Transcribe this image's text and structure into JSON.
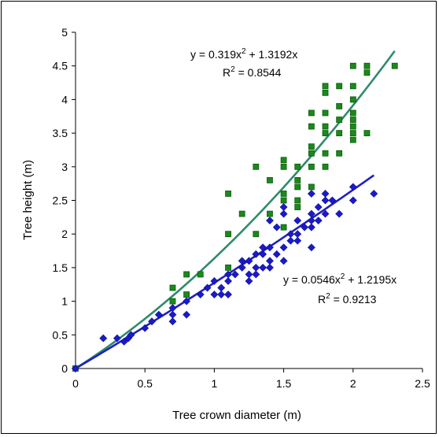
{
  "chart_data": {
    "type": "scatter",
    "title": "",
    "xlabel": "Tree crown diameter (m)",
    "ylabel": "Tree height (m)",
    "xlim": [
      0,
      2.5
    ],
    "ylim": [
      0,
      5
    ],
    "xticks": [
      "0",
      "0.5",
      "1",
      "1.5",
      "2",
      "2.5"
    ],
    "yticks": [
      "0",
      "0.5",
      "1",
      "1.5",
      "2",
      "2.5",
      "3",
      "3.5",
      "4",
      "4.5",
      "5"
    ],
    "grid": false,
    "series": [
      {
        "marker": "square",
        "color": "#1a8a1a",
        "trend_color": "#2e8b6b",
        "trend": {
          "a2": 0.319,
          "a1": 1.3192,
          "x_range": [
            0,
            2.3
          ]
        },
        "equation": {
          "main": "y = 0.319x",
          "sup": "2",
          "rest": " + 1.3192x",
          "r2_label": "R",
          "r2_sup": "2",
          "r2_value": " = 0.8544"
        },
        "points": [
          [
            0,
            0
          ],
          [
            0.7,
            1.2
          ],
          [
            0.7,
            1.0
          ],
          [
            0.8,
            1.4
          ],
          [
            0.8,
            1.1
          ],
          [
            0.9,
            1.4
          ],
          [
            1.1,
            2.6
          ],
          [
            1.1,
            2.0
          ],
          [
            1.1,
            1.5
          ],
          [
            1.2,
            2.3
          ],
          [
            1.3,
            3.0
          ],
          [
            1.3,
            2.0
          ],
          [
            1.4,
            2.8
          ],
          [
            1.4,
            2.3
          ],
          [
            1.5,
            3.1
          ],
          [
            1.5,
            3.0
          ],
          [
            1.5,
            2.6
          ],
          [
            1.5,
            2.5
          ],
          [
            1.5,
            2.1
          ],
          [
            1.6,
            3.0
          ],
          [
            1.6,
            2.8
          ],
          [
            1.6,
            2.7
          ],
          [
            1.6,
            2.5
          ],
          [
            1.6,
            2.4
          ],
          [
            1.7,
            3.8
          ],
          [
            1.7,
            3.6
          ],
          [
            1.7,
            3.3
          ],
          [
            1.7,
            3.2
          ],
          [
            1.7,
            3.0
          ],
          [
            1.7,
            2.7
          ],
          [
            1.8,
            4.2
          ],
          [
            1.8,
            4.1
          ],
          [
            1.8,
            3.8
          ],
          [
            1.8,
            3.6
          ],
          [
            1.8,
            3.5
          ],
          [
            1.8,
            3.2
          ],
          [
            1.8,
            3.0
          ],
          [
            1.9,
            4.2
          ],
          [
            1.9,
            3.9
          ],
          [
            1.9,
            3.7
          ],
          [
            1.9,
            3.5
          ],
          [
            1.9,
            3.2
          ],
          [
            2.0,
            4.5
          ],
          [
            2.0,
            4.2
          ],
          [
            2.0,
            4.0
          ],
          [
            2.0,
            3.8
          ],
          [
            2.0,
            3.7
          ],
          [
            2.0,
            3.6
          ],
          [
            2.0,
            3.5
          ],
          [
            2.0,
            3.4
          ],
          [
            2.1,
            4.5
          ],
          [
            2.1,
            4.4
          ],
          [
            2.1,
            3.5
          ],
          [
            2.3,
            4.5
          ]
        ]
      },
      {
        "marker": "diamond",
        "color": "#1a1acc",
        "trend_color": "#2020c0",
        "trend": {
          "a2": 0.0546,
          "a1": 1.2195,
          "x_range": [
            0,
            2.15
          ]
        },
        "equation": {
          "main": "y = 0.0546x",
          "sup": "2",
          "rest": " + 1.2195x",
          "r2_label": "R",
          "r2_sup": "2",
          "r2_value": " = 0.9213"
        },
        "points": [
          [
            0,
            0
          ],
          [
            0.2,
            0.45
          ],
          [
            0.3,
            0.45
          ],
          [
            0.35,
            0.4
          ],
          [
            0.38,
            0.45
          ],
          [
            0.4,
            0.5
          ],
          [
            0.5,
            0.6
          ],
          [
            0.55,
            0.7
          ],
          [
            0.6,
            0.8
          ],
          [
            0.7,
            0.9
          ],
          [
            0.7,
            0.8
          ],
          [
            0.7,
            0.7
          ],
          [
            0.8,
            1.0
          ],
          [
            0.8,
            0.8
          ],
          [
            0.9,
            1.1
          ],
          [
            0.95,
            1.2
          ],
          [
            1.0,
            1.3
          ],
          [
            1.0,
            1.1
          ],
          [
            1.05,
            1.2
          ],
          [
            1.05,
            1.1
          ],
          [
            1.1,
            1.4
          ],
          [
            1.1,
            1.3
          ],
          [
            1.1,
            1.1
          ],
          [
            1.15,
            1.4
          ],
          [
            1.2,
            1.6
          ],
          [
            1.2,
            1.5
          ],
          [
            1.25,
            1.6
          ],
          [
            1.25,
            1.4
          ],
          [
            1.25,
            1.3
          ],
          [
            1.3,
            1.7
          ],
          [
            1.3,
            1.5
          ],
          [
            1.3,
            1.4
          ],
          [
            1.35,
            1.8
          ],
          [
            1.35,
            1.7
          ],
          [
            1.35,
            1.5
          ],
          [
            1.4,
            2.2
          ],
          [
            1.4,
            1.8
          ],
          [
            1.4,
            1.6
          ],
          [
            1.4,
            1.5
          ],
          [
            1.45,
            2.1
          ],
          [
            1.45,
            1.7
          ],
          [
            1.5,
            2.4
          ],
          [
            1.5,
            2.3
          ],
          [
            1.5,
            1.8
          ],
          [
            1.5,
            1.6
          ],
          [
            1.55,
            2.0
          ],
          [
            1.55,
            1.9
          ],
          [
            1.6,
            2.2
          ],
          [
            1.6,
            2.0
          ],
          [
            1.6,
            1.9
          ],
          [
            1.65,
            2.1
          ],
          [
            1.7,
            2.6
          ],
          [
            1.7,
            2.3
          ],
          [
            1.7,
            2.2
          ],
          [
            1.7,
            2.1
          ],
          [
            1.7,
            1.8
          ],
          [
            1.75,
            2.4
          ],
          [
            1.75,
            2.2
          ],
          [
            1.8,
            2.6
          ],
          [
            1.8,
            2.5
          ],
          [
            1.8,
            2.3
          ],
          [
            1.85,
            2.5
          ],
          [
            1.9,
            2.3
          ],
          [
            2.0,
            2.7
          ],
          [
            2.0,
            2.5
          ],
          [
            2.15,
            2.6
          ]
        ]
      }
    ]
  }
}
